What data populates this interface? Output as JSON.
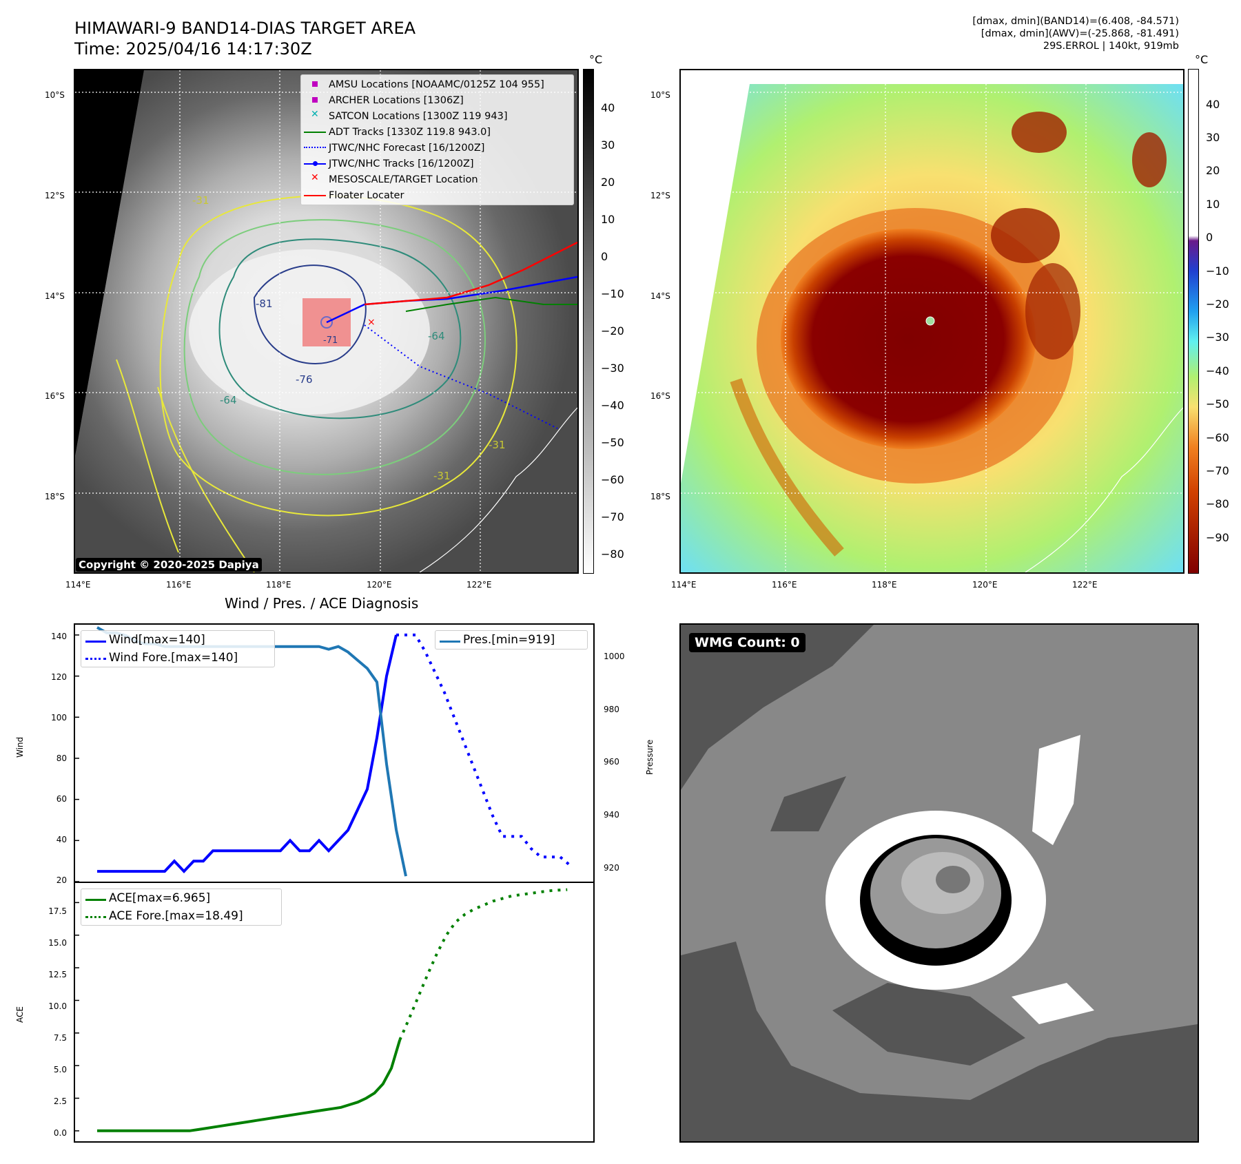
{
  "header": {
    "title_line1": "HIMAWARI-9 BAND14-DIAS TARGET AREA",
    "title_line2": "Time: 2025/04/16 14:17:30Z",
    "info_line1": "[dmax, dmin](BAND14)=(6.408, -84.571)",
    "info_line2": "[dmax, dmin](AWV)=(-25.868, -81.491)",
    "info_line3": "29S.ERROL | 140kt, 919mb"
  },
  "map": {
    "lat_labels": [
      "10°S",
      "12°S",
      "14°S",
      "16°S",
      "18°S"
    ],
    "lon_labels": [
      "114°E",
      "116°E",
      "118°E",
      "120°E",
      "122°E"
    ],
    "contour_labels": [
      "-81",
      "-76",
      "-64",
      "-64",
      "-31",
      "-31",
      "-31",
      "-71"
    ],
    "copyright": "Copyright © 2020-2025 Dapiya",
    "legend": [
      {
        "label": "AMSU Locations [NOAAMC/0125Z 104 955]",
        "symbol": "square",
        "color": "#c000c0"
      },
      {
        "label": "ARCHER Locations [1306Z]",
        "symbol": "square",
        "color": "#c000c0"
      },
      {
        "label": "SATCON Locations [1300Z 119 943]",
        "symbol": "x",
        "color": "#00b0b0"
      },
      {
        "label": "ADT Tracks [1330Z 119.8 943.0]",
        "symbol": "line",
        "color": "#008000"
      },
      {
        "label": "JTWC/NHC Forecast [16/1200Z]",
        "symbol": "dotted",
        "color": "#0000ff"
      },
      {
        "label": "JTWC/NHC Tracks [16/1200Z]",
        "symbol": "line-dot",
        "color": "#0000ff"
      },
      {
        "label": "MESOSCALE/TARGET Location",
        "symbol": "x",
        "color": "#ff0000"
      },
      {
        "label": "Floater Locater",
        "symbol": "line",
        "color": "#ff0000"
      }
    ],
    "colorbar_unit": "°C",
    "colorbar_ticks": [
      "40",
      "30",
      "20",
      "10",
      "0",
      "−10",
      "−20",
      "−30",
      "−40",
      "−50",
      "−60",
      "−70",
      "−80"
    ]
  },
  "awv": {
    "lat_labels": [
      "10°S",
      "12°S",
      "14°S",
      "16°S",
      "18°S"
    ],
    "lon_labels": [
      "114°E",
      "116°E",
      "118°E",
      "120°E",
      "122°E"
    ],
    "colorbar_unit": "°C",
    "colorbar_ticks": [
      "40",
      "30",
      "20",
      "10",
      "0",
      "−10",
      "−20",
      "−30",
      "−40",
      "−50",
      "−60",
      "−70",
      "−80",
      "−90"
    ]
  },
  "wmg": {
    "badge": "WMG Count: 0"
  },
  "chart_data": [
    {
      "type": "line",
      "title": "Wind / Pres. / ACE Diagnosis",
      "ylabel": "Wind",
      "y2label": "Pressure",
      "ylim": [
        20,
        145
      ],
      "y2lim": [
        917,
        1011
      ],
      "legend_left": [
        "Wind[max=140]",
        "Wind Fore.[max=140]"
      ],
      "legend_right": [
        "Pres.[min=919]"
      ],
      "y_ticks": [
        "140",
        "120",
        "100",
        "80",
        "60",
        "40",
        "20"
      ],
      "y2_ticks": [
        "1000",
        "980",
        "960",
        "940",
        "920"
      ],
      "series": [
        {
          "name": "Wind[max=140]",
          "color": "#0000ff",
          "style": "solid",
          "values": [
            25,
            25,
            25,
            25,
            25,
            25,
            25,
            25,
            30,
            25,
            30,
            30,
            35,
            35,
            35,
            35,
            35,
            35,
            35,
            35,
            40,
            35,
            35,
            40,
            35,
            40,
            45,
            55,
            65,
            90,
            120,
            140
          ]
        },
        {
          "name": "Wind Fore.[max=140]",
          "color": "#0000ff",
          "style": "dotted",
          "values": [
            140,
            140,
            140,
            132,
            122,
            112,
            100,
            88,
            76,
            64,
            52,
            42,
            42,
            42,
            36,
            32,
            32,
            32,
            28
          ]
        },
        {
          "name": "Pres.[min=919]",
          "color": "#1f77b4",
          "style": "solid",
          "values": [
            1010,
            1008,
            1008,
            1007,
            1005,
            1004,
            1004,
            1003,
            1003,
            1003,
            1003,
            1003,
            1003,
            1003,
            1003,
            1003,
            1003,
            1003,
            1003,
            1003,
            1003,
            1003,
            1003,
            1003,
            1002,
            1003,
            1001,
            998,
            995,
            990,
            960,
            936,
            919
          ]
        }
      ]
    },
    {
      "type": "line",
      "ylabel": "ACE",
      "ylim": [
        -0.8,
        19
      ],
      "y_ticks": [
        "17.5",
        "15.0",
        "12.5",
        "10.0",
        "7.5",
        "5.0",
        "2.5",
        "0.0"
      ],
      "legend": [
        "ACE[max=6.965]",
        "ACE Fore.[max=18.49]"
      ],
      "series": [
        {
          "name": "ACE[max=6.965]",
          "color": "#008000",
          "style": "solid",
          "values": [
            0,
            0,
            0,
            0,
            0,
            0,
            0,
            0,
            0,
            0,
            0,
            0,
            0.1,
            0.2,
            0.3,
            0.4,
            0.5,
            0.6,
            0.7,
            0.8,
            0.9,
            1.0,
            1.1,
            1.2,
            1.3,
            1.4,
            1.5,
            1.6,
            1.7,
            1.8,
            2.0,
            2.2,
            2.5,
            2.9,
            3.6,
            4.8,
            6.965
          ]
        },
        {
          "name": "ACE Fore.[max=18.49]",
          "color": "#008000",
          "style": "dotted",
          "values": [
            6.965,
            8.6,
            10.3,
            12.0,
            13.6,
            15.0,
            16.0,
            16.6,
            17.0,
            17.3,
            17.6,
            17.8,
            18.0,
            18.1,
            18.2,
            18.3,
            18.4,
            18.45,
            18.49
          ]
        }
      ]
    }
  ]
}
